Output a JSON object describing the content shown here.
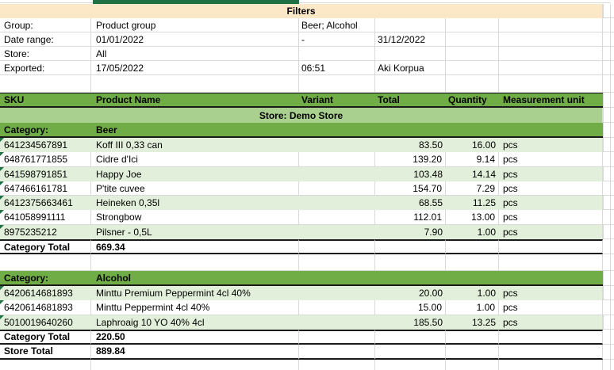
{
  "colors": {
    "header_green": "#70AD47",
    "banner_green": "#A9D08E",
    "zebra_green": "#E2EFDA",
    "strip_green": "#1F7145",
    "filters_band": "#FCE7C6",
    "gridline": "#D9D9D9"
  },
  "filters": {
    "title": "Filters",
    "rows": [
      {
        "label": "Group:",
        "value1": "Product group",
        "value2": "Beer; Alcohol",
        "value3": ""
      },
      {
        "label": "Date range:",
        "value1": "01/01/2022",
        "value2": "-",
        "value3": "31/12/2022"
      },
      {
        "label": "Store:",
        "value1": "All",
        "value2": "",
        "value3": ""
      },
      {
        "label": "Exported:",
        "value1": "17/05/2022",
        "value2": "06:51",
        "value3": "Aki Korpua"
      }
    ]
  },
  "table": {
    "columns": [
      "SKU",
      "Product Name",
      "Variant",
      "Total",
      "Quantity",
      "Measurement unit"
    ],
    "store_banner": "Store: Demo Store",
    "category_label": "Category:",
    "category_total_label": "Category Total",
    "store_total_label": "Store Total",
    "store_total_value": "889.84",
    "categories": [
      {
        "name": "Beer",
        "total": "669.34",
        "rows": [
          {
            "sku": "641234567891",
            "product": "Koff III 0,33 can",
            "variant": "",
            "total": "83.50",
            "quantity": "16.00",
            "unit": "pcs"
          },
          {
            "sku": "648761771855",
            "product": "Cidre d'Ici",
            "variant": "",
            "total": "139.20",
            "quantity": "9.14",
            "unit": "pcs"
          },
          {
            "sku": "641598791851",
            "product": "Happy Joe",
            "variant": "",
            "total": "103.48",
            "quantity": "14.14",
            "unit": "pcs"
          },
          {
            "sku": "647466161781",
            "product": "P'tite cuvee",
            "variant": "",
            "total": "154.70",
            "quantity": "7.29",
            "unit": "pcs"
          },
          {
            "sku": "6412375663461",
            "product": "Heineken 0,35l",
            "variant": "",
            "total": "68.55",
            "quantity": "11.25",
            "unit": "pcs"
          },
          {
            "sku": "641058991111",
            "product": "Strongbow",
            "variant": "",
            "total": "112.01",
            "quantity": "13.00",
            "unit": "pcs"
          },
          {
            "sku": "8975235212",
            "product": "Pilsner - 0,5L",
            "variant": "",
            "total": "7.90",
            "quantity": "1.00",
            "unit": "pcs"
          }
        ]
      },
      {
        "name": "Alcohol",
        "total": "220.50",
        "rows": [
          {
            "sku": "6420614681893",
            "product": "Minttu Premium Peppermint 4cl 40%",
            "variant": "",
            "total": "20.00",
            "quantity": "1.00",
            "unit": "pcs"
          },
          {
            "sku": "6420614681893",
            "product": "Minttu Peppermint 4cl 40%",
            "variant": "",
            "total": "15.00",
            "quantity": "1.00",
            "unit": "pcs"
          },
          {
            "sku": "5010019640260",
            "product": "Laphroaig 10 YO 40% 4cl",
            "variant": "",
            "total": "185.50",
            "quantity": "13.25",
            "unit": "pcs"
          }
        ]
      }
    ]
  }
}
